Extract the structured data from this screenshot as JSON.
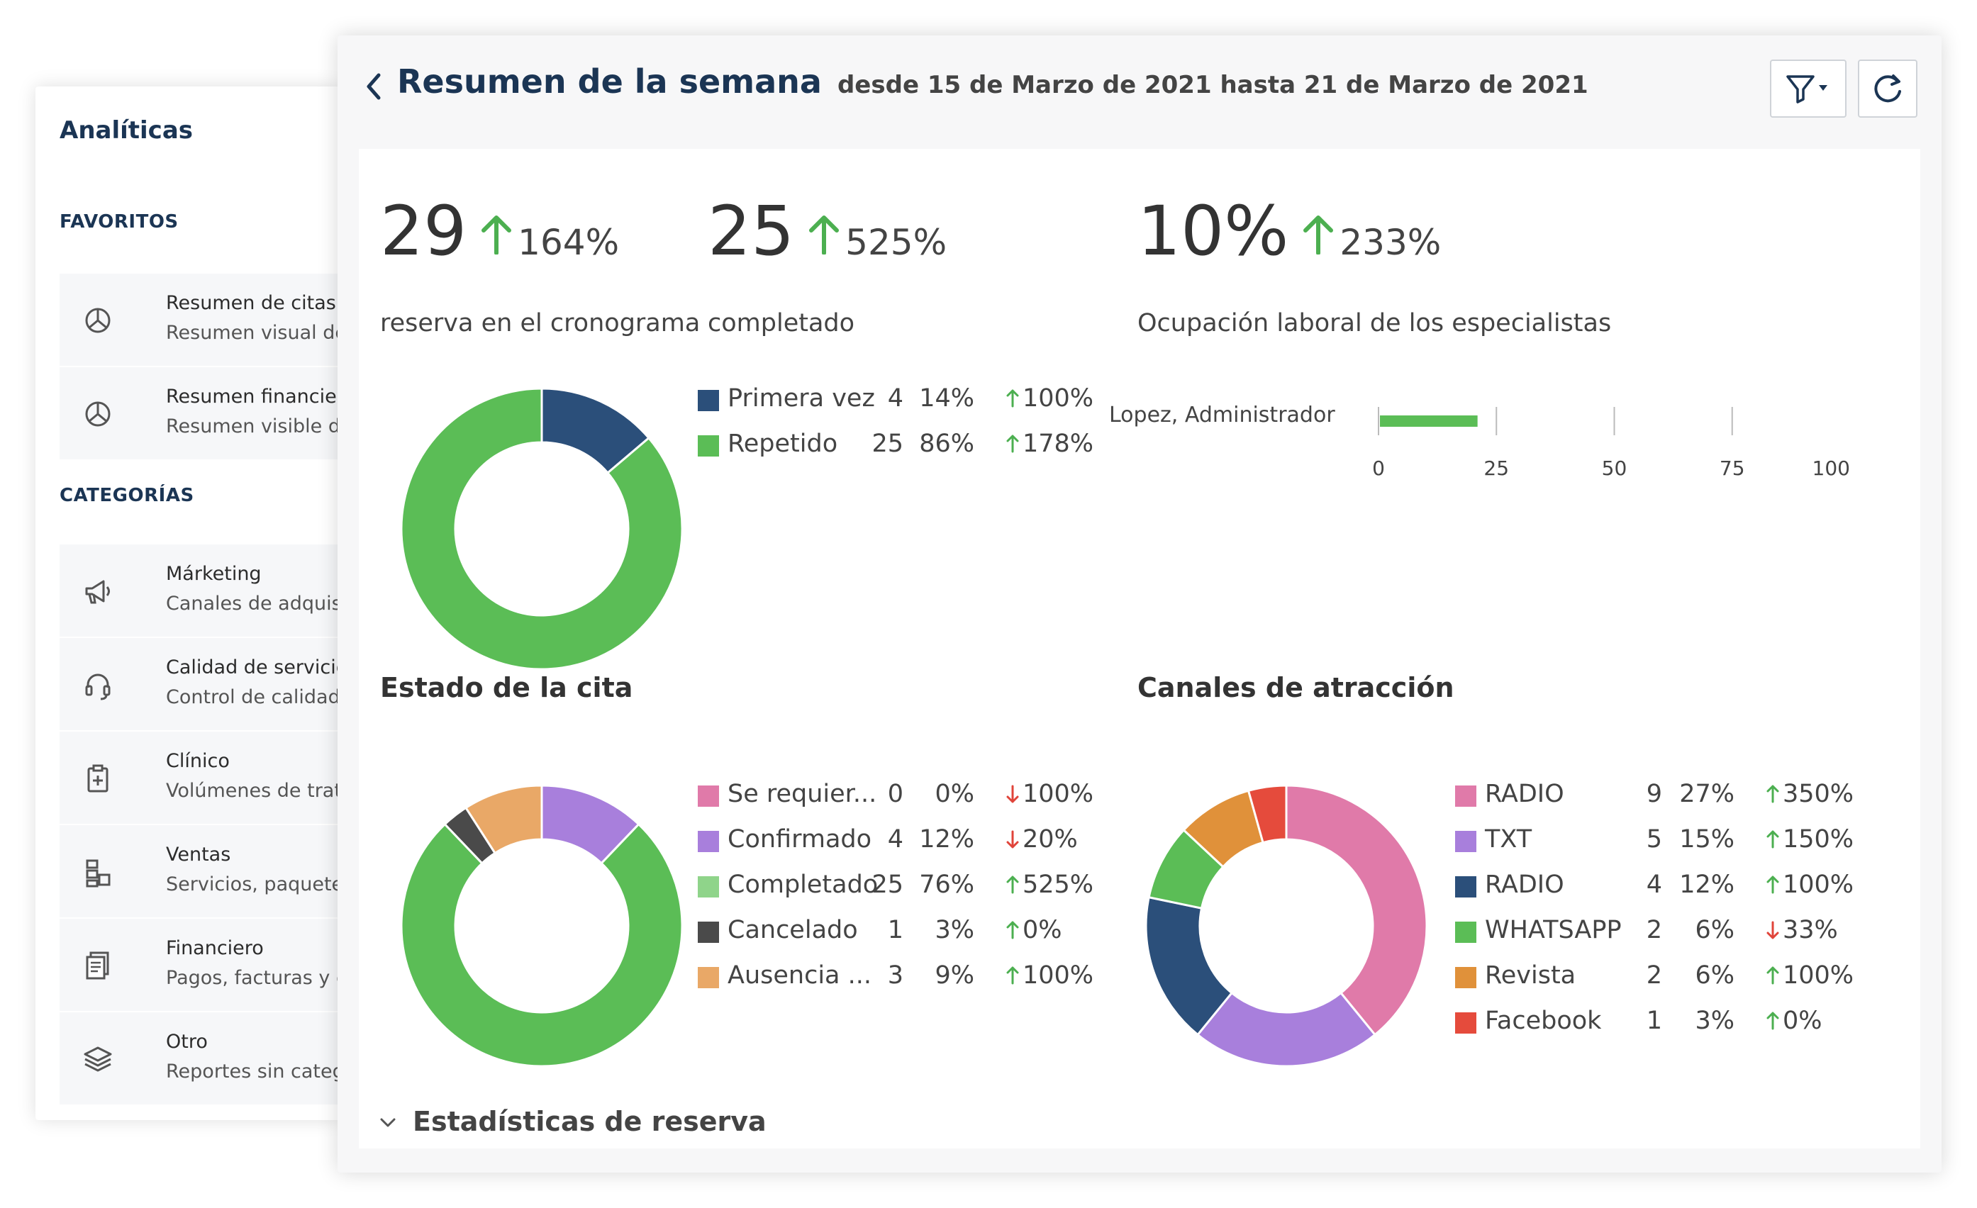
{
  "sidebar": {
    "title": "Analíticas",
    "favorites_label": "FAVORITOS",
    "categories_label": "CATEGORÍAS",
    "favorites": [
      {
        "icon": "pie-chart-icon",
        "title": "Resumen de citas",
        "subtitle": "Resumen visual de cita"
      },
      {
        "icon": "pie-chart-icon",
        "title": "Resumen financiero",
        "subtitle": "Resumen visible de ind"
      }
    ],
    "categories": [
      {
        "icon": "megaphone-icon",
        "title": "Márketing",
        "subtitle": "Canales de adquisición"
      },
      {
        "icon": "headset-icon",
        "title": "Calidad de servicio",
        "subtitle": "Control de calidad en la"
      },
      {
        "icon": "clipboard-plus-icon",
        "title": "Clínico",
        "subtitle": "Volúmenes de tratamie"
      },
      {
        "icon": "boxes-icon",
        "title": "Ventas",
        "subtitle": "Servicios, paquetes mé"
      },
      {
        "icon": "documents-icon",
        "title": "Financiero",
        "subtitle": "Pagos, facturas y conta"
      },
      {
        "icon": "layers-icon",
        "title": "Otro",
        "subtitle": "Reportes sin categoría"
      }
    ]
  },
  "header": {
    "title": "Resumen de la semana",
    "range": "desde 15 de Marzo de 2021 hasta 21 de Marzo de 2021",
    "filter_icon": "filter-icon",
    "refresh_icon": "refresh-icon",
    "back_icon": "chevron-left-icon"
  },
  "colors": {
    "green": "#5bbd56",
    "navy": "#2b4f7a",
    "up": "#4caf50",
    "down": "#e0443a"
  },
  "kpis": [
    {
      "value": "29",
      "change": "164%",
      "direction": "up",
      "label": "reserva en el cronograma"
    },
    {
      "value": "25",
      "change": "525%",
      "direction": "up",
      "label": "completado"
    },
    {
      "value": "10%",
      "change": "233%",
      "direction": "up",
      "label": "Ocupación laboral de los especialistas"
    }
  ],
  "chart_data": [
    {
      "type": "pie",
      "title": "",
      "categories": [
        "Primera vez",
        "Repetido"
      ],
      "values": [
        4,
        25
      ],
      "percent_labels": [
        "14%",
        "86%"
      ],
      "changes": [
        "100%",
        "178%"
      ],
      "change_directions": [
        "up",
        "up"
      ],
      "colors": [
        "#2b4f7a",
        "#5bbd56"
      ]
    },
    {
      "type": "bar",
      "title": "",
      "categories": [
        "Lopez, Administrador"
      ],
      "values": [
        21
      ],
      "xlim": [
        0,
        100
      ],
      "ticks": [
        "0",
        "25",
        "50",
        "75",
        "100"
      ],
      "colors": [
        "#5bbd56"
      ]
    },
    {
      "type": "pie",
      "title": "Estado de la cita",
      "categories": [
        "Se requier...",
        "Confirmado",
        "Completado",
        "Cancelado",
        "Ausencia ..."
      ],
      "values": [
        0,
        4,
        25,
        1,
        3
      ],
      "percent_labels": [
        "0%",
        "12%",
        "76%",
        "3%",
        "9%"
      ],
      "changes": [
        "100%",
        "20%",
        "525%",
        "0%",
        "100%"
      ],
      "change_directions": [
        "down",
        "down",
        "up",
        "up",
        "up"
      ],
      "colors": [
        "#e07aa9",
        "#a87fdc",
        "#5bbd56",
        "#4a4a4a",
        "#e9a867"
      ],
      "legend_colors": [
        "#e07aa9",
        "#a87fdc",
        "#8fd48a",
        "#4a4a4a",
        "#e9a867"
      ]
    },
    {
      "type": "pie",
      "title": "Canales de atracción",
      "categories": [
        "RADIO",
        "TXT",
        "RADIO",
        "WHATSAPP",
        "Revista",
        "Facebook"
      ],
      "values": [
        9,
        5,
        4,
        2,
        2,
        1
      ],
      "percent_labels": [
        "27%",
        "15%",
        "12%",
        "6%",
        "6%",
        "3%"
      ],
      "changes": [
        "350%",
        "150%",
        "100%",
        "33%",
        "100%",
        "0%"
      ],
      "change_directions": [
        "up",
        "up",
        "up",
        "down",
        "up",
        "up"
      ],
      "colors": [
        "#e07aa9",
        "#a87fdc",
        "#2b4f7a",
        "#5bbd56",
        "#e0913a",
        "#e54b3c"
      ]
    }
  ],
  "footer": {
    "label": "Estadísticas de reserva",
    "icon": "chevron-down-icon"
  }
}
